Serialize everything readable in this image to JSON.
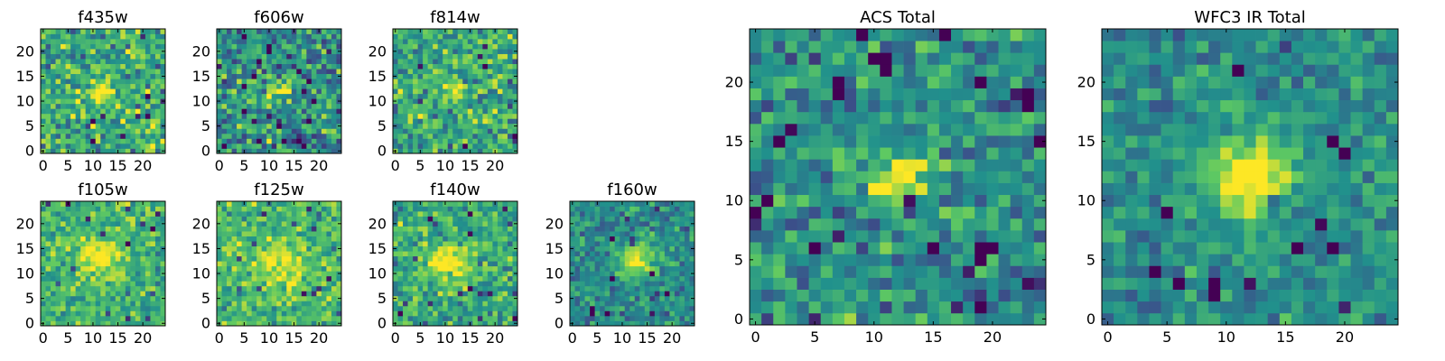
{
  "figure": {
    "colormap_colors": [
      "#440154",
      "#3b528b",
      "#21918c",
      "#5ec962",
      "#fde725"
    ]
  },
  "chart_data": [
    {
      "type": "heatmap",
      "title": "f435w",
      "grid_size": 25,
      "xlim": [
        0,
        24
      ],
      "ylim": [
        0,
        24
      ],
      "xticks": [
        0,
        5,
        10,
        15,
        20
      ],
      "yticks": [
        0,
        5,
        10,
        15,
        20
      ],
      "source_center": [
        12,
        12
      ],
      "source_radius": 1.6,
      "background_level": 0.62,
      "noise": 0.16
    },
    {
      "type": "heatmap",
      "title": "f606w",
      "grid_size": 25,
      "xlim": [
        0,
        24
      ],
      "ylim": [
        0,
        24
      ],
      "xticks": [
        0,
        5,
        10,
        15,
        20
      ],
      "yticks": [
        0,
        5,
        10,
        15,
        20
      ],
      "source_center": [
        12,
        12
      ],
      "source_radius": 1.6,
      "background_level": 0.5,
      "noise": 0.18
    },
    {
      "type": "heatmap",
      "title": "f814w",
      "grid_size": 25,
      "xlim": [
        0,
        24
      ],
      "ylim": [
        0,
        24
      ],
      "xticks": [
        0,
        5,
        10,
        15,
        20
      ],
      "yticks": [
        0,
        5,
        10,
        15,
        20
      ],
      "source_center": [
        12,
        12
      ],
      "source_radius": 1.6,
      "background_level": 0.6,
      "noise": 0.16
    },
    {
      "type": "heatmap",
      "title": "f105w",
      "grid_size": 25,
      "xlim": [
        0,
        24
      ],
      "ylim": [
        0,
        24
      ],
      "xticks": [
        0,
        5,
        10,
        15,
        20
      ],
      "yticks": [
        0,
        5,
        10,
        15,
        20
      ],
      "source_center": [
        11,
        13
      ],
      "source_radius": 2.8,
      "background_level": 0.65,
      "noise": 0.12
    },
    {
      "type": "heatmap",
      "title": "f125w",
      "grid_size": 25,
      "xlim": [
        0,
        24
      ],
      "ylim": [
        0,
        24
      ],
      "xticks": [
        0,
        5,
        10,
        15,
        20
      ],
      "yticks": [
        0,
        5,
        10,
        15,
        20
      ],
      "source_center": [
        12,
        12
      ],
      "source_radius": 3.0,
      "background_level": 0.68,
      "noise": 0.12
    },
    {
      "type": "heatmap",
      "title": "f140w",
      "grid_size": 25,
      "xlim": [
        0,
        24
      ],
      "ylim": [
        0,
        24
      ],
      "xticks": [
        0,
        5,
        10,
        15,
        20
      ],
      "yticks": [
        0,
        5,
        10,
        15,
        20
      ],
      "source_center": [
        11,
        12
      ],
      "source_radius": 3.0,
      "background_level": 0.6,
      "noise": 0.13
    },
    {
      "type": "heatmap",
      "title": "f160w",
      "grid_size": 25,
      "xlim": [
        0,
        24
      ],
      "ylim": [
        0,
        24
      ],
      "xticks": [
        0,
        5,
        10,
        15,
        20
      ],
      "yticks": [
        0,
        5,
        10,
        15,
        20
      ],
      "source_center": [
        13,
        13
      ],
      "source_radius": 2.4,
      "background_level": 0.48,
      "noise": 0.11
    },
    {
      "type": "heatmap",
      "title": "ACS Total",
      "grid_size": 25,
      "xlim": [
        0,
        24
      ],
      "ylim": [
        0,
        24
      ],
      "xticks": [
        0,
        5,
        10,
        15,
        20
      ],
      "yticks": [
        0,
        5,
        10,
        15,
        20
      ],
      "source_center": [
        12,
        12
      ],
      "source_radius": 1.6,
      "background_level": 0.5,
      "noise": 0.13
    },
    {
      "type": "heatmap",
      "title": "WFC3 IR Total",
      "grid_size": 25,
      "xlim": [
        0,
        24
      ],
      "ylim": [
        0,
        24
      ],
      "xticks": [
        0,
        5,
        10,
        15,
        20
      ],
      "yticks": [
        0,
        5,
        10,
        15,
        20
      ],
      "source_center": [
        12,
        12
      ],
      "source_radius": 2.6,
      "background_level": 0.48,
      "noise": 0.1
    }
  ]
}
